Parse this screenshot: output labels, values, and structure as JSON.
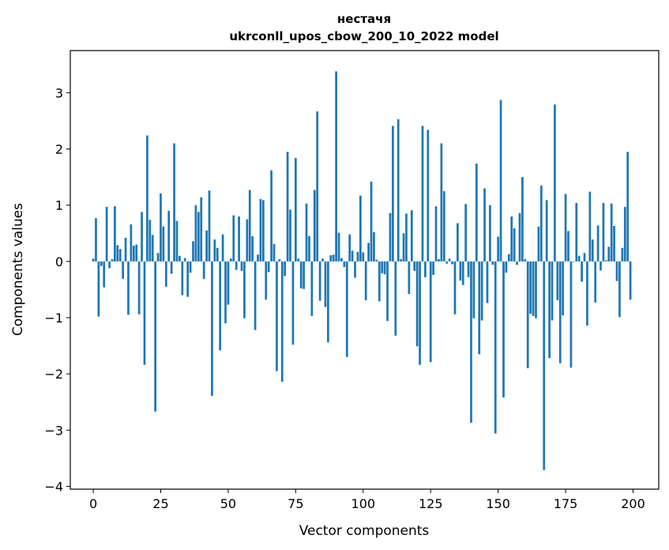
{
  "chart_data": {
    "type": "bar",
    "title": "нестачя",
    "subtitle": "ukrconll_upos_cbow_200_10_2022 model",
    "xlabel": "Vector components",
    "ylabel": "Components values",
    "xlim": [
      -8.5,
      209.5
    ],
    "ylim": [
      -4.05,
      3.75
    ],
    "xticks": [
      0,
      25,
      50,
      75,
      100,
      125,
      150,
      175,
      200
    ],
    "yticks": [
      -4,
      -3,
      -2,
      -1,
      0,
      1,
      2,
      3
    ],
    "grid": false,
    "color": "#1f77b4",
    "x": [
      0,
      1,
      2,
      3,
      4,
      5,
      6,
      7,
      8,
      9,
      10,
      11,
      12,
      13,
      14,
      15,
      16,
      17,
      18,
      19,
      20,
      21,
      22,
      23,
      24,
      25,
      26,
      27,
      28,
      29,
      30,
      31,
      32,
      33,
      34,
      35,
      36,
      37,
      38,
      39,
      40,
      41,
      42,
      43,
      44,
      45,
      46,
      47,
      48,
      49,
      50,
      51,
      52,
      53,
      54,
      55,
      56,
      57,
      58,
      59,
      60,
      61,
      62,
      63,
      64,
      65,
      66,
      67,
      68,
      69,
      70,
      71,
      72,
      73,
      74,
      75,
      76,
      77,
      78,
      79,
      80,
      81,
      82,
      83,
      84,
      85,
      86,
      87,
      88,
      89,
      90,
      91,
      92,
      93,
      94,
      95,
      96,
      97,
      98,
      99,
      100,
      101,
      102,
      103,
      104,
      105,
      106,
      107,
      108,
      109,
      110,
      111,
      112,
      113,
      114,
      115,
      116,
      117,
      118,
      119,
      120,
      121,
      122,
      123,
      124,
      125,
      126,
      127,
      128,
      129,
      130,
      131,
      132,
      133,
      134,
      135,
      136,
      137,
      138,
      139,
      140,
      141,
      142,
      143,
      144,
      145,
      146,
      147,
      148,
      149,
      150,
      151,
      152,
      153,
      154,
      155,
      156,
      157,
      158,
      159,
      160,
      161,
      162,
      163,
      164,
      165,
      166,
      167,
      168,
      169,
      170,
      171,
      172,
      173,
      174,
      175,
      176,
      177,
      178,
      179,
      180,
      181,
      182,
      183,
      184,
      185,
      186,
      187,
      188,
      189,
      190,
      191,
      192,
      193,
      194,
      195,
      196,
      197,
      198,
      199
    ],
    "values": [
      0.05,
      0.77,
      -0.98,
      -0.08,
      -0.46,
      0.97,
      -0.12,
      0.04,
      0.98,
      0.29,
      0.22,
      -0.31,
      0.42,
      -0.95,
      0.66,
      0.28,
      0.3,
      -0.94,
      0.88,
      -1.84,
      2.24,
      0.74,
      0.47,
      -2.67,
      0.15,
      1.21,
      0.62,
      -0.45,
      0.9,
      -0.22,
      2.1,
      0.72,
      0.1,
      -0.6,
      0.06,
      -0.63,
      -0.2,
      0.36,
      1.0,
      0.88,
      1.14,
      -0.31,
      0.55,
      1.26,
      -2.39,
      0.39,
      0.24,
      -1.58,
      0.48,
      -1.1,
      -0.77,
      0.05,
      0.82,
      -0.15,
      0.8,
      -0.17,
      -1.01,
      0.75,
      1.27,
      0.45,
      -1.22,
      0.12,
      1.11,
      1.09,
      -0.68,
      -0.19,
      1.62,
      0.31,
      -1.95,
      0.04,
      -2.14,
      -0.26,
      1.95,
      0.92,
      -1.48,
      1.84,
      0.05,
      -0.48,
      -0.49,
      1.03,
      0.45,
      -0.97,
      1.27,
      2.67,
      -0.7,
      0.05,
      -0.81,
      -1.44,
      0.11,
      0.12,
      3.38,
      0.51,
      0.06,
      -0.1,
      -1.7,
      0.48,
      0.19,
      -0.29,
      0.17,
      1.17,
      0.16,
      -0.69,
      0.33,
      1.42,
      0.52,
      0.03,
      -0.71,
      -0.21,
      -0.23,
      -1.06,
      0.86,
      2.41,
      -1.32,
      2.53,
      0.04,
      0.5,
      0.85,
      -0.58,
      0.91,
      -0.17,
      -1.51,
      -1.84,
      2.41,
      -0.28,
      2.34,
      -1.79,
      -0.24,
      0.98,
      0.04,
      2.1,
      1.25,
      -0.04,
      0.05,
      -0.05,
      -0.94,
      0.68,
      -0.34,
      -0.42,
      1.02,
      -0.28,
      -2.87,
      -1.01,
      1.74,
      -1.65,
      -1.05,
      1.3,
      -0.74,
      1.0,
      -0.06,
      -3.06,
      0.44,
      2.87,
      -2.42,
      -0.2,
      0.13,
      0.8,
      0.59,
      -0.06,
      0.86,
      1.5,
      0.04,
      -1.9,
      -0.93,
      -0.97,
      -1.01,
      0.62,
      1.35,
      -3.71,
      1.09,
      -1.72,
      -1.05,
      2.79,
      -0.69,
      -1.81,
      -0.96,
      1.2,
      0.54,
      -1.89,
      -0.01,
      1.04,
      0.1,
      -0.36,
      0.15,
      -1.14,
      1.24,
      0.39,
      -0.73,
      0.64,
      -0.16,
      1.04,
      0.02,
      0.26,
      1.03,
      0.63,
      -0.35,
      -0.99,
      0.24,
      0.97,
      1.95,
      -0.68
    ]
  }
}
